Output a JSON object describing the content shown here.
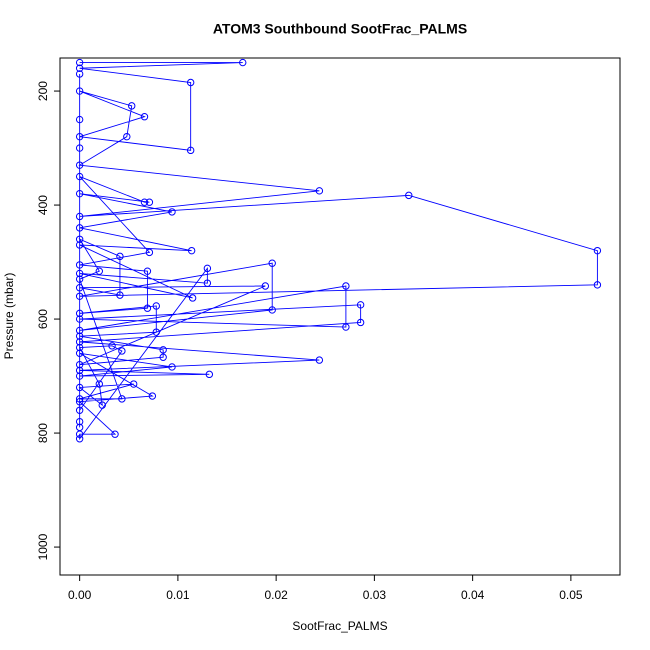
{
  "chart_data": {
    "type": "scatter",
    "lines": true,
    "title": "ATOM3 Southbound SootFrac_PALMS",
    "x_label": "SootFrac_PALMS",
    "y_label": "Pressure (mbar)",
    "xlim": [
      -0.002,
      0.055
    ],
    "ylim": [
      1049,
      142
    ],
    "xticks": [
      {
        "value": 0,
        "label": "0.00"
      },
      0.01,
      0.02,
      0.03,
      0.04,
      0.05
    ],
    "yticks": [
      200,
      400,
      600,
      800,
      1000
    ],
    "series": [
      {
        "color": "#0000ff",
        "x": [
          0,
          0.0166,
          0,
          0.0113,
          0.0113,
          0,
          0.0066,
          0,
          0.0053,
          0.0048,
          0,
          0.0244,
          0,
          0.0335,
          0.0527,
          0.0527,
          0,
          0.0196,
          0.0196,
          0,
          0.0271,
          0.0271,
          0,
          0.0286,
          0.0286,
          0,
          0.0244,
          0,
          0.0132,
          0,
          0.0094,
          0,
          0.0074,
          0,
          0.0036,
          0,
          0,
          0.013,
          0.013,
          0,
          0.0115,
          0,
          0.0114,
          0,
          0.0094,
          0,
          0.0071,
          0.0066,
          0,
          0.0071,
          0,
          0.0069,
          0.0069,
          0,
          0.0078,
          0.0078,
          0,
          0.0085,
          0.0085,
          0,
          0.0189,
          0,
          0.0041,
          0.0041,
          0,
          0.002,
          0,
          0.0043,
          0,
          0.0055,
          0,
          0.0023,
          0.002,
          0,
          0.0033,
          0.0043,
          0,
          0,
          0,
          0,
          0,
          0
        ],
        "values": [
          150,
          150,
          160,
          185,
          304,
          280,
          245,
          200,
          226,
          280,
          330,
          375,
          420,
          383,
          480,
          540,
          560,
          502,
          584,
          620,
          542,
          614,
          600,
          575,
          606,
          640,
          672,
          690,
          697,
          700,
          684,
          660,
          735,
          745,
          802,
          802,
          810,
          511,
          537,
          520,
          563,
          470,
          480,
          440,
          412,
          380,
          395,
          395,
          350,
          483,
          505,
          516,
          581,
          590,
          577,
          623,
          630,
          654,
          667,
          680,
          542,
          545,
          558,
          490,
          460,
          516,
          530,
          740,
          740,
          714,
          720,
          751,
          714,
          650,
          647,
          656,
          760,
          780,
          790,
          170,
          250,
          300
        ]
      }
    ]
  }
}
